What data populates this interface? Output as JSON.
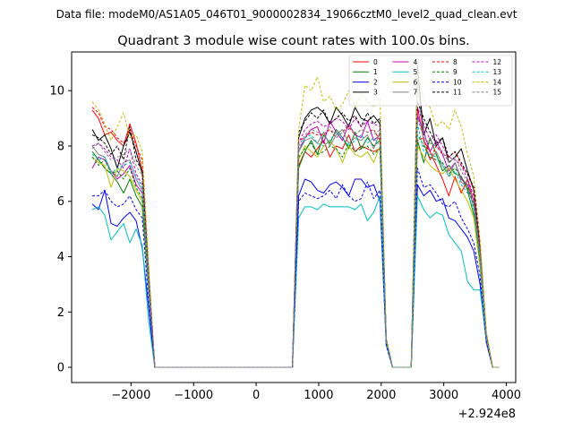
{
  "suptitle": "Data file: modeM0/AS1A05_046T01_9000002834_19066cztM0_level2_quad_clean.evt",
  "chart_data": {
    "type": "line",
    "title": "Quadrant 3 module wise count rates with 100.0s bins.",
    "xlabel": "",
    "ylabel": "",
    "x_offset_label": "+2.924e8",
    "xlim": [
      -2950,
      4150
    ],
    "ylim": [
      -0.55,
      11.4
    ],
    "x_ticks": [
      -2000,
      -1000,
      0,
      1000,
      2000,
      3000,
      4000
    ],
    "x_tick_labels": [
      "−2000",
      "−1000",
      "0",
      "1000",
      "2000",
      "3000",
      "4000"
    ],
    "y_ticks": [
      0,
      2,
      4,
      6,
      8,
      10
    ],
    "y_tick_labels": [
      "0",
      "2",
      "4",
      "6",
      "8",
      "10"
    ],
    "legend_position": "top-right",
    "legend_columns": 4,
    "x": [
      -2620,
      -2520,
      -2420,
      -2320,
      -2220,
      -2120,
      -2020,
      -1920,
      -1820,
      -1720,
      -1620,
      -1520,
      -1420,
      -1320,
      -1220,
      -1120,
      -1020,
      -920,
      -820,
      -720,
      -620,
      -520,
      -420,
      -320,
      -220,
      -120,
      -20,
      80,
      180,
      280,
      380,
      480,
      580,
      680,
      780,
      880,
      980,
      1080,
      1180,
      1280,
      1380,
      1480,
      1580,
      1680,
      1780,
      1880,
      1980,
      2080,
      2180,
      2280,
      2380,
      2480,
      2580,
      2680,
      2780,
      2880,
      2980,
      3080,
      3180,
      3280,
      3380,
      3480,
      3580,
      3680,
      3780,
      3880
    ],
    "series": [
      {
        "name": "0",
        "color": "#ff0000",
        "dash": false,
        "values": [
          9.3,
          9.0,
          8.4,
          8.5,
          8.2,
          8.0,
          8.8,
          8.1,
          7.1,
          3.5,
          0,
          0,
          0,
          0,
          0,
          0,
          0,
          0,
          0,
          0,
          0,
          0,
          0,
          0,
          0,
          0,
          0,
          0,
          0,
          0,
          0,
          0,
          0,
          7.3,
          7.8,
          7.6,
          7.9,
          8.2,
          7.6,
          8.0,
          7.9,
          8.4,
          7.8,
          8.0,
          7.9,
          7.8,
          7.9,
          1.0,
          0,
          0,
          0,
          0,
          9.4,
          8.2,
          7.8,
          7.3,
          6.8,
          6.2,
          6.9,
          6.3,
          6.8,
          6.0,
          4.2,
          1.2,
          0,
          0
        ]
      },
      {
        "name": "1",
        "color": "#008000",
        "dash": false,
        "values": [
          7.8,
          7.5,
          7.2,
          7.0,
          6.7,
          6.3,
          6.8,
          6.2,
          5.8,
          2.9,
          0,
          0,
          0,
          0,
          0,
          0,
          0,
          0,
          0,
          0,
          0,
          0,
          0,
          0,
          0,
          0,
          0,
          0,
          0,
          0,
          0,
          0,
          0,
          7.2,
          7.8,
          8.2,
          7.7,
          8.4,
          8.1,
          8.6,
          8.3,
          7.9,
          8.5,
          7.9,
          8.3,
          8.0,
          8.2,
          1.0,
          0,
          0,
          0,
          0,
          8.2,
          7.4,
          8.3,
          7.7,
          7.1,
          7.3,
          7.0,
          6.9,
          6.4,
          5.5,
          3.8,
          1.1,
          0,
          0
        ]
      },
      {
        "name": "2",
        "color": "#0000ff",
        "dash": false,
        "values": [
          5.9,
          5.7,
          6.4,
          5.2,
          5.1,
          5.4,
          5.6,
          5.3,
          4.3,
          2.2,
          0,
          0,
          0,
          0,
          0,
          0,
          0,
          0,
          0,
          0,
          0,
          0,
          0,
          0,
          0,
          0,
          0,
          0,
          0,
          0,
          0,
          0,
          0,
          6.2,
          6.8,
          6.7,
          6.4,
          6.3,
          6.6,
          6.7,
          6.5,
          6.2,
          6.8,
          6.8,
          6.5,
          6.6,
          6.0,
          0.8,
          0,
          0,
          0,
          0,
          6.6,
          6.2,
          6.4,
          6.0,
          6.1,
          5.4,
          5.3,
          5.0,
          4.7,
          4.2,
          3.0,
          0.9,
          0,
          0
        ]
      },
      {
        "name": "3",
        "color": "#000000",
        "dash": false,
        "values": [
          8.6,
          8.2,
          8.4,
          7.9,
          7.2,
          8.0,
          8.5,
          7.8,
          7.0,
          3.4,
          0,
          0,
          0,
          0,
          0,
          0,
          0,
          0,
          0,
          0,
          0,
          0,
          0,
          0,
          0,
          0,
          0,
          0,
          0,
          0,
          0,
          0,
          0,
          8.3,
          9.0,
          9.3,
          9.4,
          9.2,
          8.8,
          9.4,
          9.1,
          8.7,
          9.4,
          9.0,
          8.9,
          9.1,
          8.8,
          1.0,
          0,
          0,
          0,
          0,
          10.9,
          8.4,
          9.0,
          8.0,
          8.3,
          7.4,
          7.6,
          7.9,
          7.1,
          6.4,
          4.3,
          1.2,
          0,
          0
        ]
      },
      {
        "name": "4",
        "color": "#bf00bf",
        "dash": false,
        "values": [
          7.2,
          7.6,
          7.5,
          7.1,
          6.8,
          7.0,
          7.3,
          6.6,
          6.3,
          3.1,
          0,
          0,
          0,
          0,
          0,
          0,
          0,
          0,
          0,
          0,
          0,
          0,
          0,
          0,
          0,
          0,
          0,
          0,
          0,
          0,
          0,
          0,
          0,
          7.8,
          8.3,
          8.6,
          8.7,
          8.1,
          8.9,
          8.5,
          8.2,
          8.8,
          8.4,
          8.3,
          8.9,
          8.2,
          8.4,
          1.0,
          0,
          0,
          0,
          0,
          9.1,
          8.5,
          7.8,
          8.2,
          7.7,
          7.1,
          7.4,
          6.8,
          6.6,
          6.0,
          4.0,
          1.1,
          0,
          0
        ]
      },
      {
        "name": "5",
        "color": "#00bfbf",
        "dash": false,
        "values": [
          5.7,
          5.8,
          5.5,
          4.6,
          4.9,
          5.2,
          4.5,
          5.0,
          4.4,
          1.7,
          0,
          0,
          0,
          0,
          0,
          0,
          0,
          0,
          0,
          0,
          0,
          0,
          0,
          0,
          0,
          0,
          0,
          0,
          0,
          0,
          0,
          0,
          0,
          5.4,
          5.8,
          5.8,
          5.7,
          5.9,
          5.8,
          5.8,
          5.8,
          5.8,
          5.7,
          5.9,
          5.3,
          5.6,
          6.2,
          0.8,
          0,
          0,
          0,
          0,
          6.2,
          5.7,
          5.4,
          5.6,
          5.5,
          4.8,
          4.5,
          4.2,
          3.1,
          2.8,
          2.8,
          1.0,
          0,
          0
        ]
      },
      {
        "name": "6",
        "color": "#bfbf00",
        "dash": false,
        "values": [
          7.6,
          7.4,
          7.3,
          6.5,
          7.2,
          7.1,
          6.9,
          6.4,
          6.0,
          3.0,
          0,
          0,
          0,
          0,
          0,
          0,
          0,
          0,
          0,
          0,
          0,
          0,
          0,
          0,
          0,
          0,
          0,
          0,
          0,
          0,
          0,
          0,
          0,
          7.5,
          8.0,
          7.8,
          7.6,
          8.0,
          8.2,
          7.9,
          7.4,
          8.0,
          7.7,
          7.6,
          7.8,
          7.4,
          8.0,
          0.9,
          0,
          0,
          0,
          0,
          8.0,
          7.6,
          7.3,
          7.1,
          7.0,
          7.2,
          6.8,
          6.4,
          6.0,
          5.4,
          3.6,
          1.0,
          0,
          0
        ]
      },
      {
        "name": "7",
        "color": "#808080",
        "dash": false,
        "values": [
          8.0,
          7.7,
          7.6,
          7.1,
          6.9,
          7.4,
          7.5,
          6.8,
          6.4,
          3.1,
          0,
          0,
          0,
          0,
          0,
          0,
          0,
          0,
          0,
          0,
          0,
          0,
          0,
          0,
          0,
          0,
          0,
          0,
          0,
          0,
          0,
          0,
          0,
          7.8,
          8.2,
          8.3,
          8.1,
          8.5,
          8.0,
          8.4,
          8.6,
          8.1,
          8.3,
          8.2,
          8.4,
          7.9,
          8.5,
          1.0,
          0,
          0,
          0,
          0,
          10.4,
          8.1,
          7.5,
          7.8,
          7.3,
          6.9,
          7.4,
          6.7,
          6.5,
          5.8,
          4.0,
          1.1,
          0,
          0
        ]
      },
      {
        "name": "8",
        "color": "#ff0000",
        "dash": true,
        "values": [
          9.4,
          9.2,
          8.7,
          8.6,
          8.3,
          8.1,
          8.6,
          8.0,
          7.5,
          3.6,
          0,
          0,
          0,
          0,
          0,
          0,
          0,
          0,
          0,
          0,
          0,
          0,
          0,
          0,
          0,
          0,
          0,
          0,
          0,
          0,
          0,
          0,
          0,
          8.2,
          8.3,
          8.5,
          8.4,
          8.4,
          8.6,
          8.3,
          8.5,
          8.7,
          8.4,
          8.6,
          8.5,
          8.6,
          8.2,
          1.0,
          0,
          0,
          0,
          0,
          8.2,
          8.3,
          7.5,
          8.0,
          7.7,
          7.6,
          7.8,
          7.3,
          7.0,
          6.4,
          4.4,
          1.2,
          0,
          0
        ]
      },
      {
        "name": "9",
        "color": "#008000",
        "dash": true,
        "values": [
          7.6,
          7.3,
          7.5,
          7.0,
          7.1,
          6.8,
          7.2,
          6.5,
          6.1,
          3.0,
          0,
          0,
          0,
          0,
          0,
          0,
          0,
          0,
          0,
          0,
          0,
          0,
          0,
          0,
          0,
          0,
          0,
          0,
          0,
          0,
          0,
          0,
          0,
          7.6,
          7.9,
          8.1,
          7.7,
          7.8,
          8.0,
          7.9,
          7.6,
          8.1,
          7.8,
          7.9,
          8.0,
          7.7,
          7.9,
          1.0,
          0,
          0,
          0,
          0,
          8.4,
          8.0,
          7.6,
          7.5,
          7.4,
          7.0,
          7.2,
          6.9,
          6.5,
          5.9,
          3.9,
          1.1,
          0,
          0
        ]
      },
      {
        "name": "10",
        "color": "#0000ff",
        "dash": true,
        "values": [
          6.2,
          6.2,
          6.4,
          6.0,
          5.8,
          5.9,
          6.2,
          5.7,
          5.4,
          2.4,
          0,
          0,
          0,
          0,
          0,
          0,
          0,
          0,
          0,
          0,
          0,
          0,
          0,
          0,
          0,
          0,
          0,
          0,
          0,
          0,
          0,
          0,
          0,
          6.0,
          6.3,
          6.2,
          6.1,
          6.2,
          6.4,
          6.1,
          6.6,
          6.2,
          6.0,
          6.1,
          6.7,
          6.1,
          6.4,
          0.8,
          0,
          0,
          0,
          0,
          7.2,
          6.5,
          6.6,
          6.3,
          5.9,
          5.8,
          6.0,
          5.4,
          5.0,
          4.5,
          3.3,
          0.9,
          0,
          0
        ]
      },
      {
        "name": "11",
        "color": "#000000",
        "dash": true,
        "values": [
          8.4,
          8.3,
          8.1,
          7.7,
          8.0,
          7.5,
          8.7,
          7.5,
          7.1,
          3.4,
          0,
          0,
          0,
          0,
          0,
          0,
          0,
          0,
          0,
          0,
          0,
          0,
          0,
          0,
          0,
          0,
          0,
          0,
          0,
          0,
          0,
          0,
          0,
          8.5,
          8.9,
          9.2,
          9.0,
          9.3,
          8.8,
          9.0,
          9.2,
          8.9,
          9.1,
          8.7,
          9.2,
          8.8,
          9.0,
          1.0,
          0,
          0,
          0,
          0,
          9.6,
          9.0,
          8.5,
          8.1,
          8.3,
          7.6,
          7.8,
          7.4,
          7.0,
          6.5,
          4.5,
          1.2,
          0,
          0
        ]
      },
      {
        "name": "12",
        "color": "#bf00bf",
        "dash": true,
        "values": [
          8.0,
          8.1,
          7.9,
          7.6,
          7.5,
          7.2,
          7.9,
          7.0,
          6.6,
          3.2,
          0,
          0,
          0,
          0,
          0,
          0,
          0,
          0,
          0,
          0,
          0,
          0,
          0,
          0,
          0,
          0,
          0,
          0,
          0,
          0,
          0,
          0,
          0,
          8.1,
          8.6,
          8.8,
          8.9,
          8.7,
          8.8,
          9.0,
          8.9,
          8.6,
          9.0,
          8.7,
          8.9,
          8.8,
          8.7,
          1.0,
          0,
          0,
          0,
          0,
          9.4,
          8.8,
          8.2,
          8.4,
          8.0,
          7.6,
          7.5,
          7.3,
          6.8,
          6.2,
          4.2,
          1.1,
          0,
          0
        ]
      },
      {
        "name": "13",
        "color": "#00bfbf",
        "dash": true,
        "values": [
          7.7,
          7.5,
          7.6,
          7.0,
          7.2,
          7.3,
          7.4,
          6.9,
          6.5,
          3.2,
          0,
          0,
          0,
          0,
          0,
          0,
          0,
          0,
          0,
          0,
          0,
          0,
          0,
          0,
          0,
          0,
          0,
          0,
          0,
          0,
          0,
          0,
          0,
          7.9,
          8.3,
          8.4,
          8.1,
          8.0,
          8.2,
          8.5,
          8.3,
          8.0,
          8.2,
          8.4,
          8.1,
          8.3,
          8.0,
          1.0,
          0,
          0,
          0,
          0,
          8.8,
          7.8,
          7.7,
          7.6,
          7.3,
          6.9,
          7.1,
          6.6,
          6.3,
          5.7,
          3.9,
          1.1,
          0,
          0
        ]
      },
      {
        "name": "14",
        "color": "#bfbf00",
        "dash": true,
        "values": [
          9.6,
          9.3,
          8.8,
          8.2,
          8.7,
          9.2,
          8.3,
          8.4,
          7.8,
          3.8,
          0,
          0,
          0,
          0,
          0,
          0,
          0,
          0,
          0,
          0,
          0,
          0,
          0,
          0,
          0,
          0,
          0,
          0,
          0,
          0,
          0,
          0,
          0,
          8.6,
          10.2,
          10.0,
          10.5,
          9.6,
          9.8,
          9.3,
          9.5,
          10.0,
          9.4,
          9.9,
          9.6,
          9.4,
          9.7,
          1.1,
          0,
          0,
          0,
          0,
          10.7,
          9.6,
          9.4,
          8.7,
          8.9,
          8.6,
          9.3,
          8.7,
          7.7,
          6.9,
          4.6,
          1.3,
          0,
          0
        ]
      },
      {
        "name": "15",
        "color": "#808080",
        "dash": true,
        "values": [
          7.9,
          8.1,
          7.8,
          7.5,
          7.6,
          7.7,
          7.9,
          7.3,
          6.9,
          3.3,
          0,
          0,
          0,
          0,
          0,
          0,
          0,
          0,
          0,
          0,
          0,
          0,
          0,
          0,
          0,
          0,
          0,
          0,
          0,
          0,
          0,
          0,
          0,
          8.0,
          8.4,
          8.6,
          8.5,
          8.4,
          8.7,
          8.3,
          8.5,
          8.8,
          8.4,
          8.6,
          8.5,
          8.4,
          8.6,
          1.0,
          0,
          0,
          0,
          0,
          9.0,
          8.3,
          8.1,
          8.0,
          7.8,
          7.4,
          7.6,
          7.1,
          6.7,
          6.0,
          4.1,
          1.1,
          0,
          0
        ]
      }
    ]
  }
}
